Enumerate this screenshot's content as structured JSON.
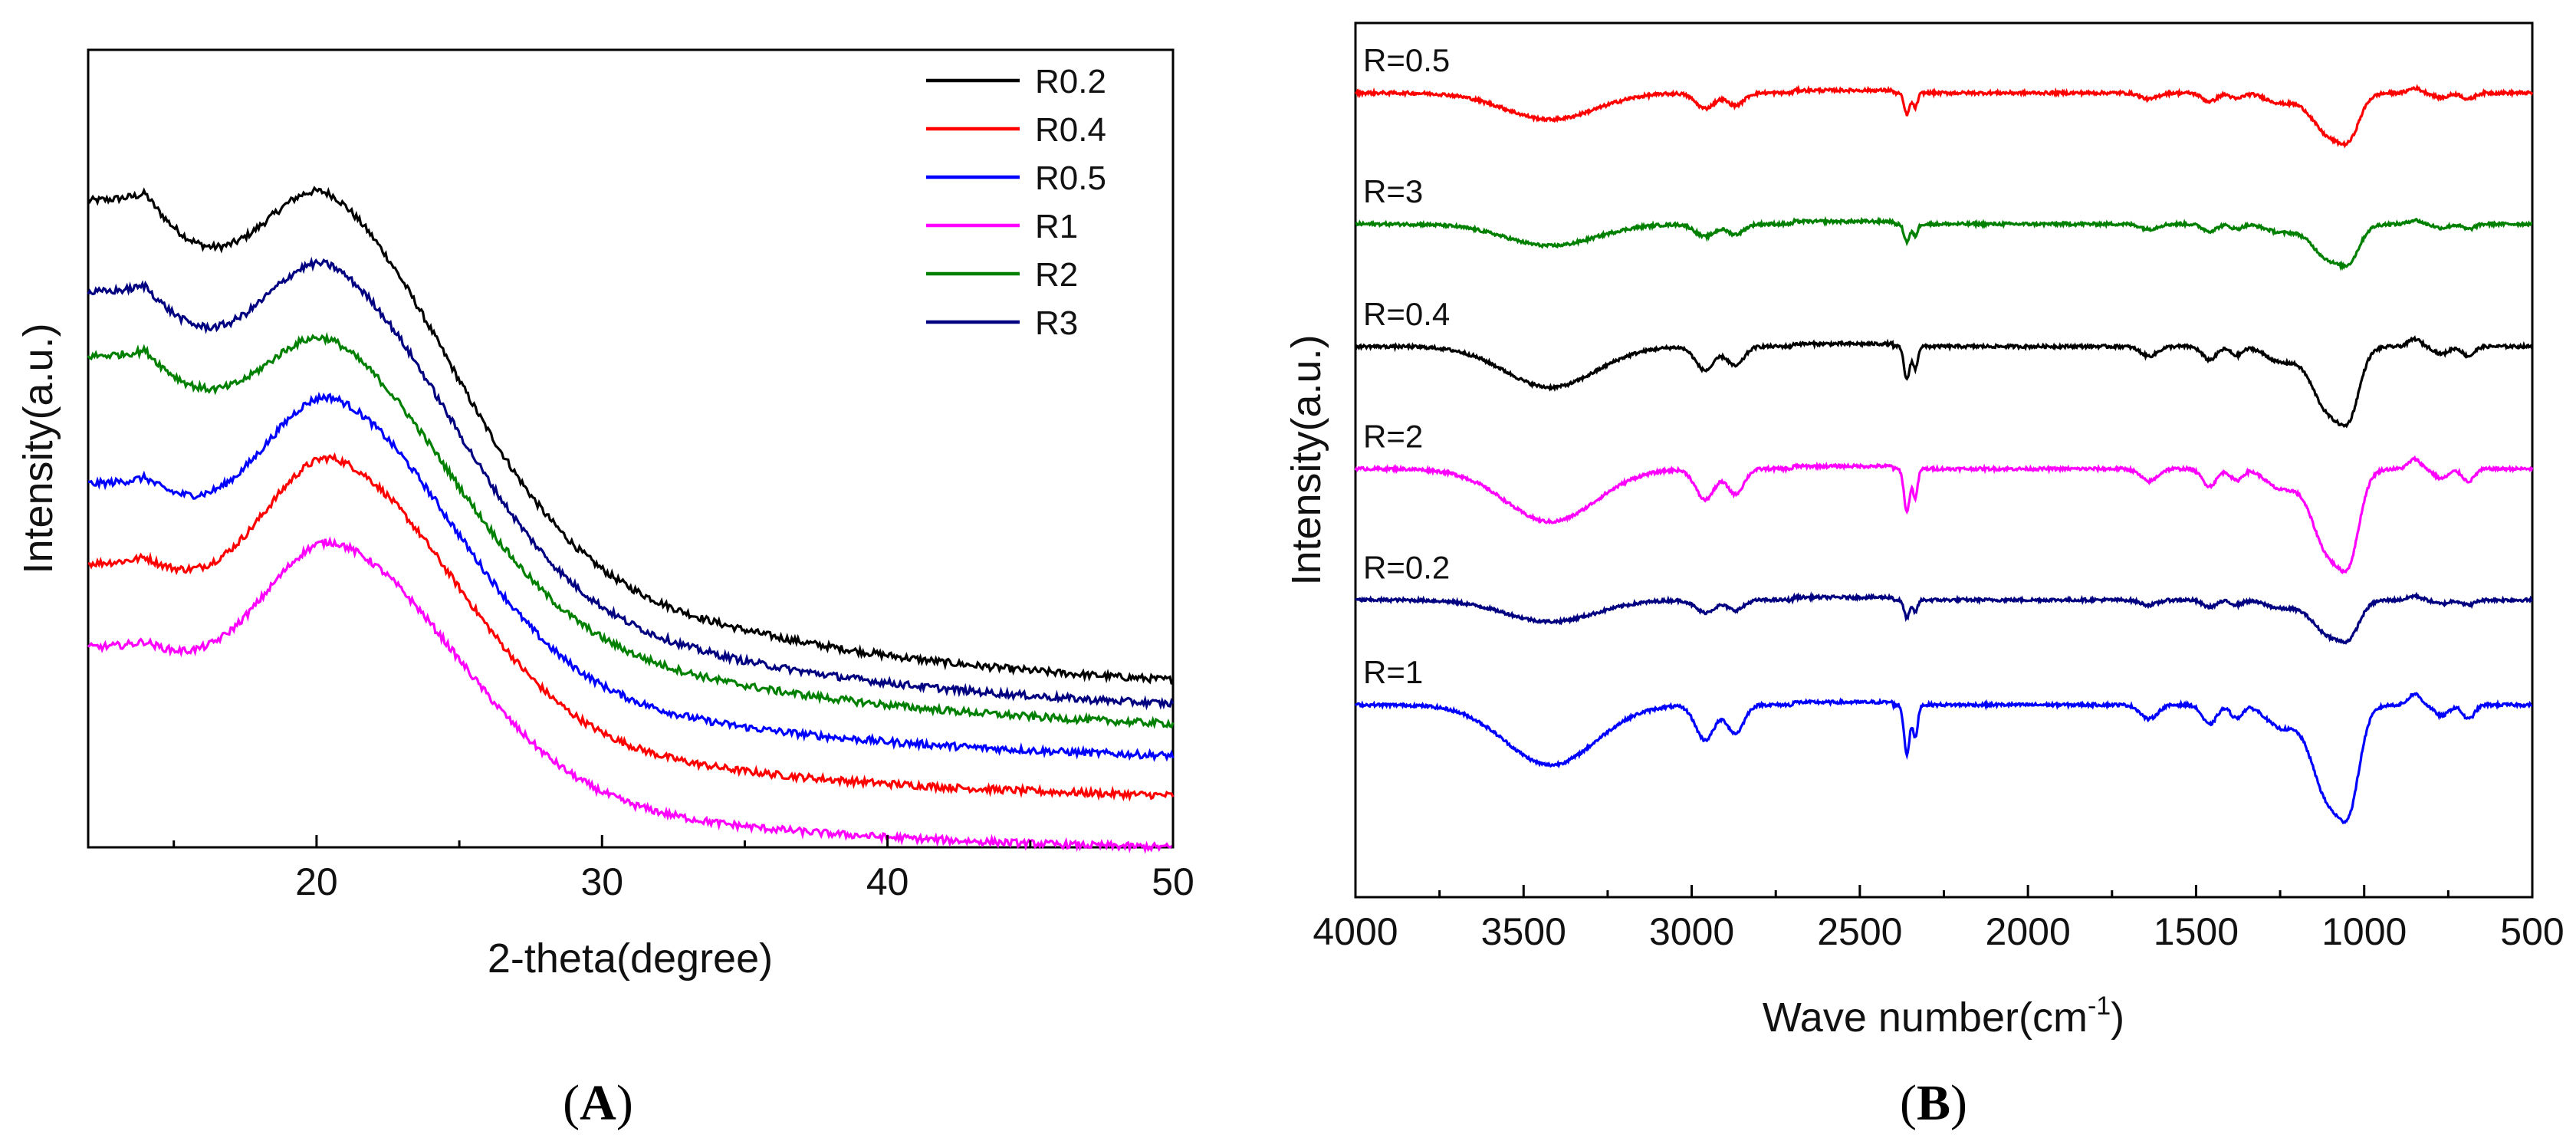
{
  "chart_data": [
    {
      "panel": "A",
      "type": "line",
      "caption": "(A)",
      "caption_open": "(",
      "caption_letter": "A",
      "caption_close": ")",
      "xlabel": "2-theta(degree)",
      "ylabel": "Intensity(a.u.)",
      "xlim": [
        12,
        50
      ],
      "ylim": [
        0,
        100
      ],
      "x_ticks": [
        20,
        30,
        40,
        50
      ],
      "x_minor_ticks": [
        15,
        25,
        35,
        45
      ],
      "y_ticks_shown": false,
      "legend_position": "top-right",
      "series": [
        {
          "name": "R0.2",
          "color": "#000000",
          "baseline": 81,
          "amplitude": 30,
          "tail": 21
        },
        {
          "name": "R0.4",
          "color": "#ff0000",
          "baseline": 35.5,
          "amplitude": 27.5,
          "tail": 6.5
        },
        {
          "name": "R0.5",
          "color": "#0000ff",
          "baseline": 45.5,
          "amplitude": 27.5,
          "tail": 11.5
        },
        {
          "name": "R1",
          "color": "#ff00ff",
          "baseline": 25,
          "amplitude": 25.5,
          "tail": 0
        },
        {
          "name": "R2",
          "color": "#008000",
          "baseline": 61.5,
          "amplitude": 24.5,
          "tail": 15.5
        },
        {
          "name": "R3",
          "color": "#000080",
          "baseline": 69.5,
          "amplitude": 28.5,
          "tail": 18
        }
      ],
      "legend_order": [
        "R0.2",
        "R0.4",
        "R0.5",
        "R1",
        "R2",
        "R3"
      ]
    },
    {
      "panel": "B",
      "type": "line",
      "caption": "(B)",
      "caption_open": "(",
      "caption_letter": "B",
      "caption_close": ")",
      "xlabel": "Wave number(cm",
      "xlabel_sup": "-1",
      "xlabel_end": ")",
      "ylabel": "Intensity(a.u.)",
      "xlim": [
        4000,
        500
      ],
      "ylim": [
        0,
        100
      ],
      "x_ticks": [
        4000,
        3500,
        3000,
        2500,
        2000,
        1500,
        1000,
        500
      ],
      "x_minor_ticks": [
        3750,
        3250,
        2750,
        2250,
        1750,
        1250,
        750
      ],
      "y_ticks_shown": false,
      "series": [
        {
          "name": "R=0.5",
          "color": "#ff0000",
          "offset": 92,
          "scale": 0.55
        },
        {
          "name": "R=3",
          "color": "#008000",
          "offset": 77,
          "scale": 0.45
        },
        {
          "name": "R=0.4",
          "color": "#000000",
          "offset": 63,
          "scale": 0.85
        },
        {
          "name": "R=2",
          "color": "#ff00ff",
          "offset": 49,
          "scale": 1.1
        },
        {
          "name": "R=0.2",
          "color": "#000080",
          "offset": 34,
          "scale": 0.45
        },
        {
          "name": "R=1",
          "color": "#0000ff",
          "offset": 22,
          "scale": 1.25
        }
      ]
    }
  ]
}
